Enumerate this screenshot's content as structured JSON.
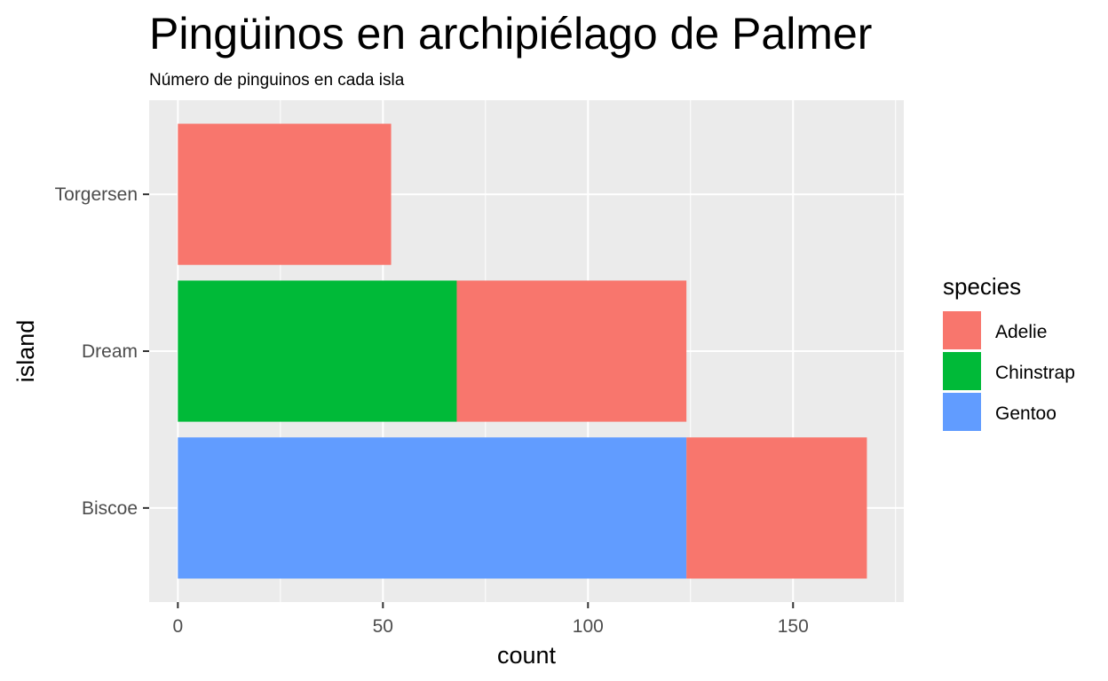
{
  "chart_data": {
    "type": "bar",
    "orientation": "horizontal",
    "stacked": true,
    "title": "Pingüinos en archipiélago de Palmer",
    "subtitle": "Número de pinguinos en cada isla",
    "xlabel": "count",
    "ylabel": "island",
    "categories": [
      "Biscoe",
      "Dream",
      "Torgersen"
    ],
    "xlim": [
      -7,
      177
    ],
    "xticks": [
      0,
      50,
      100,
      150
    ],
    "grid": true,
    "legend": {
      "title": "species",
      "position": "right"
    },
    "series": [
      {
        "name": "Adelie",
        "color": "#F8766D",
        "values": [
          44,
          56,
          52
        ]
      },
      {
        "name": "Chinstrap",
        "color": "#00BA38",
        "values": [
          0,
          68,
          0
        ]
      },
      {
        "name": "Gentoo",
        "color": "#619CFF",
        "values": [
          124,
          0,
          0
        ]
      }
    ]
  }
}
